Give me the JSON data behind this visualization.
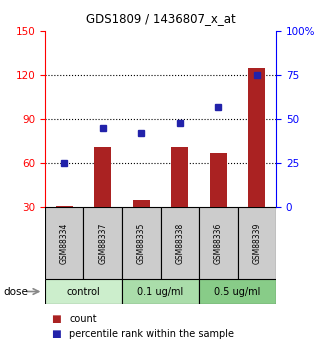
{
  "title": "GDS1809 / 1436807_x_at",
  "samples": [
    "GSM88334",
    "GSM88337",
    "GSM88335",
    "GSM88338",
    "GSM88336",
    "GSM88339"
  ],
  "bar_values": [
    31,
    71,
    35,
    71,
    67,
    125
  ],
  "dot_values": [
    25,
    45,
    42,
    48,
    57,
    75
  ],
  "bar_color": "#aa2222",
  "dot_color": "#2222aa",
  "ylim_left": [
    30,
    150
  ],
  "ylim_right": [
    0,
    100
  ],
  "left_ticks": [
    30,
    60,
    90,
    120,
    150
  ],
  "right_ticks": [
    0,
    25,
    50,
    75,
    100
  ],
  "right_tick_labels": [
    "0",
    "25",
    "50",
    "75",
    "100%"
  ],
  "groups": [
    {
      "label": "control",
      "color": "#cceecc",
      "span": [
        0,
        2
      ]
    },
    {
      "label": "0.1 ug/ml",
      "color": "#aaddaa",
      "span": [
        2,
        4
      ]
    },
    {
      "label": "0.5 ug/ml",
      "color": "#88cc88",
      "span": [
        4,
        6
      ]
    }
  ],
  "dose_label": "dose",
  "legend_bar": "count",
  "legend_dot": "percentile rank within the sample",
  "gridlines": [
    60,
    90,
    120
  ],
  "bar_width": 0.45,
  "sample_box_color": "#cccccc"
}
